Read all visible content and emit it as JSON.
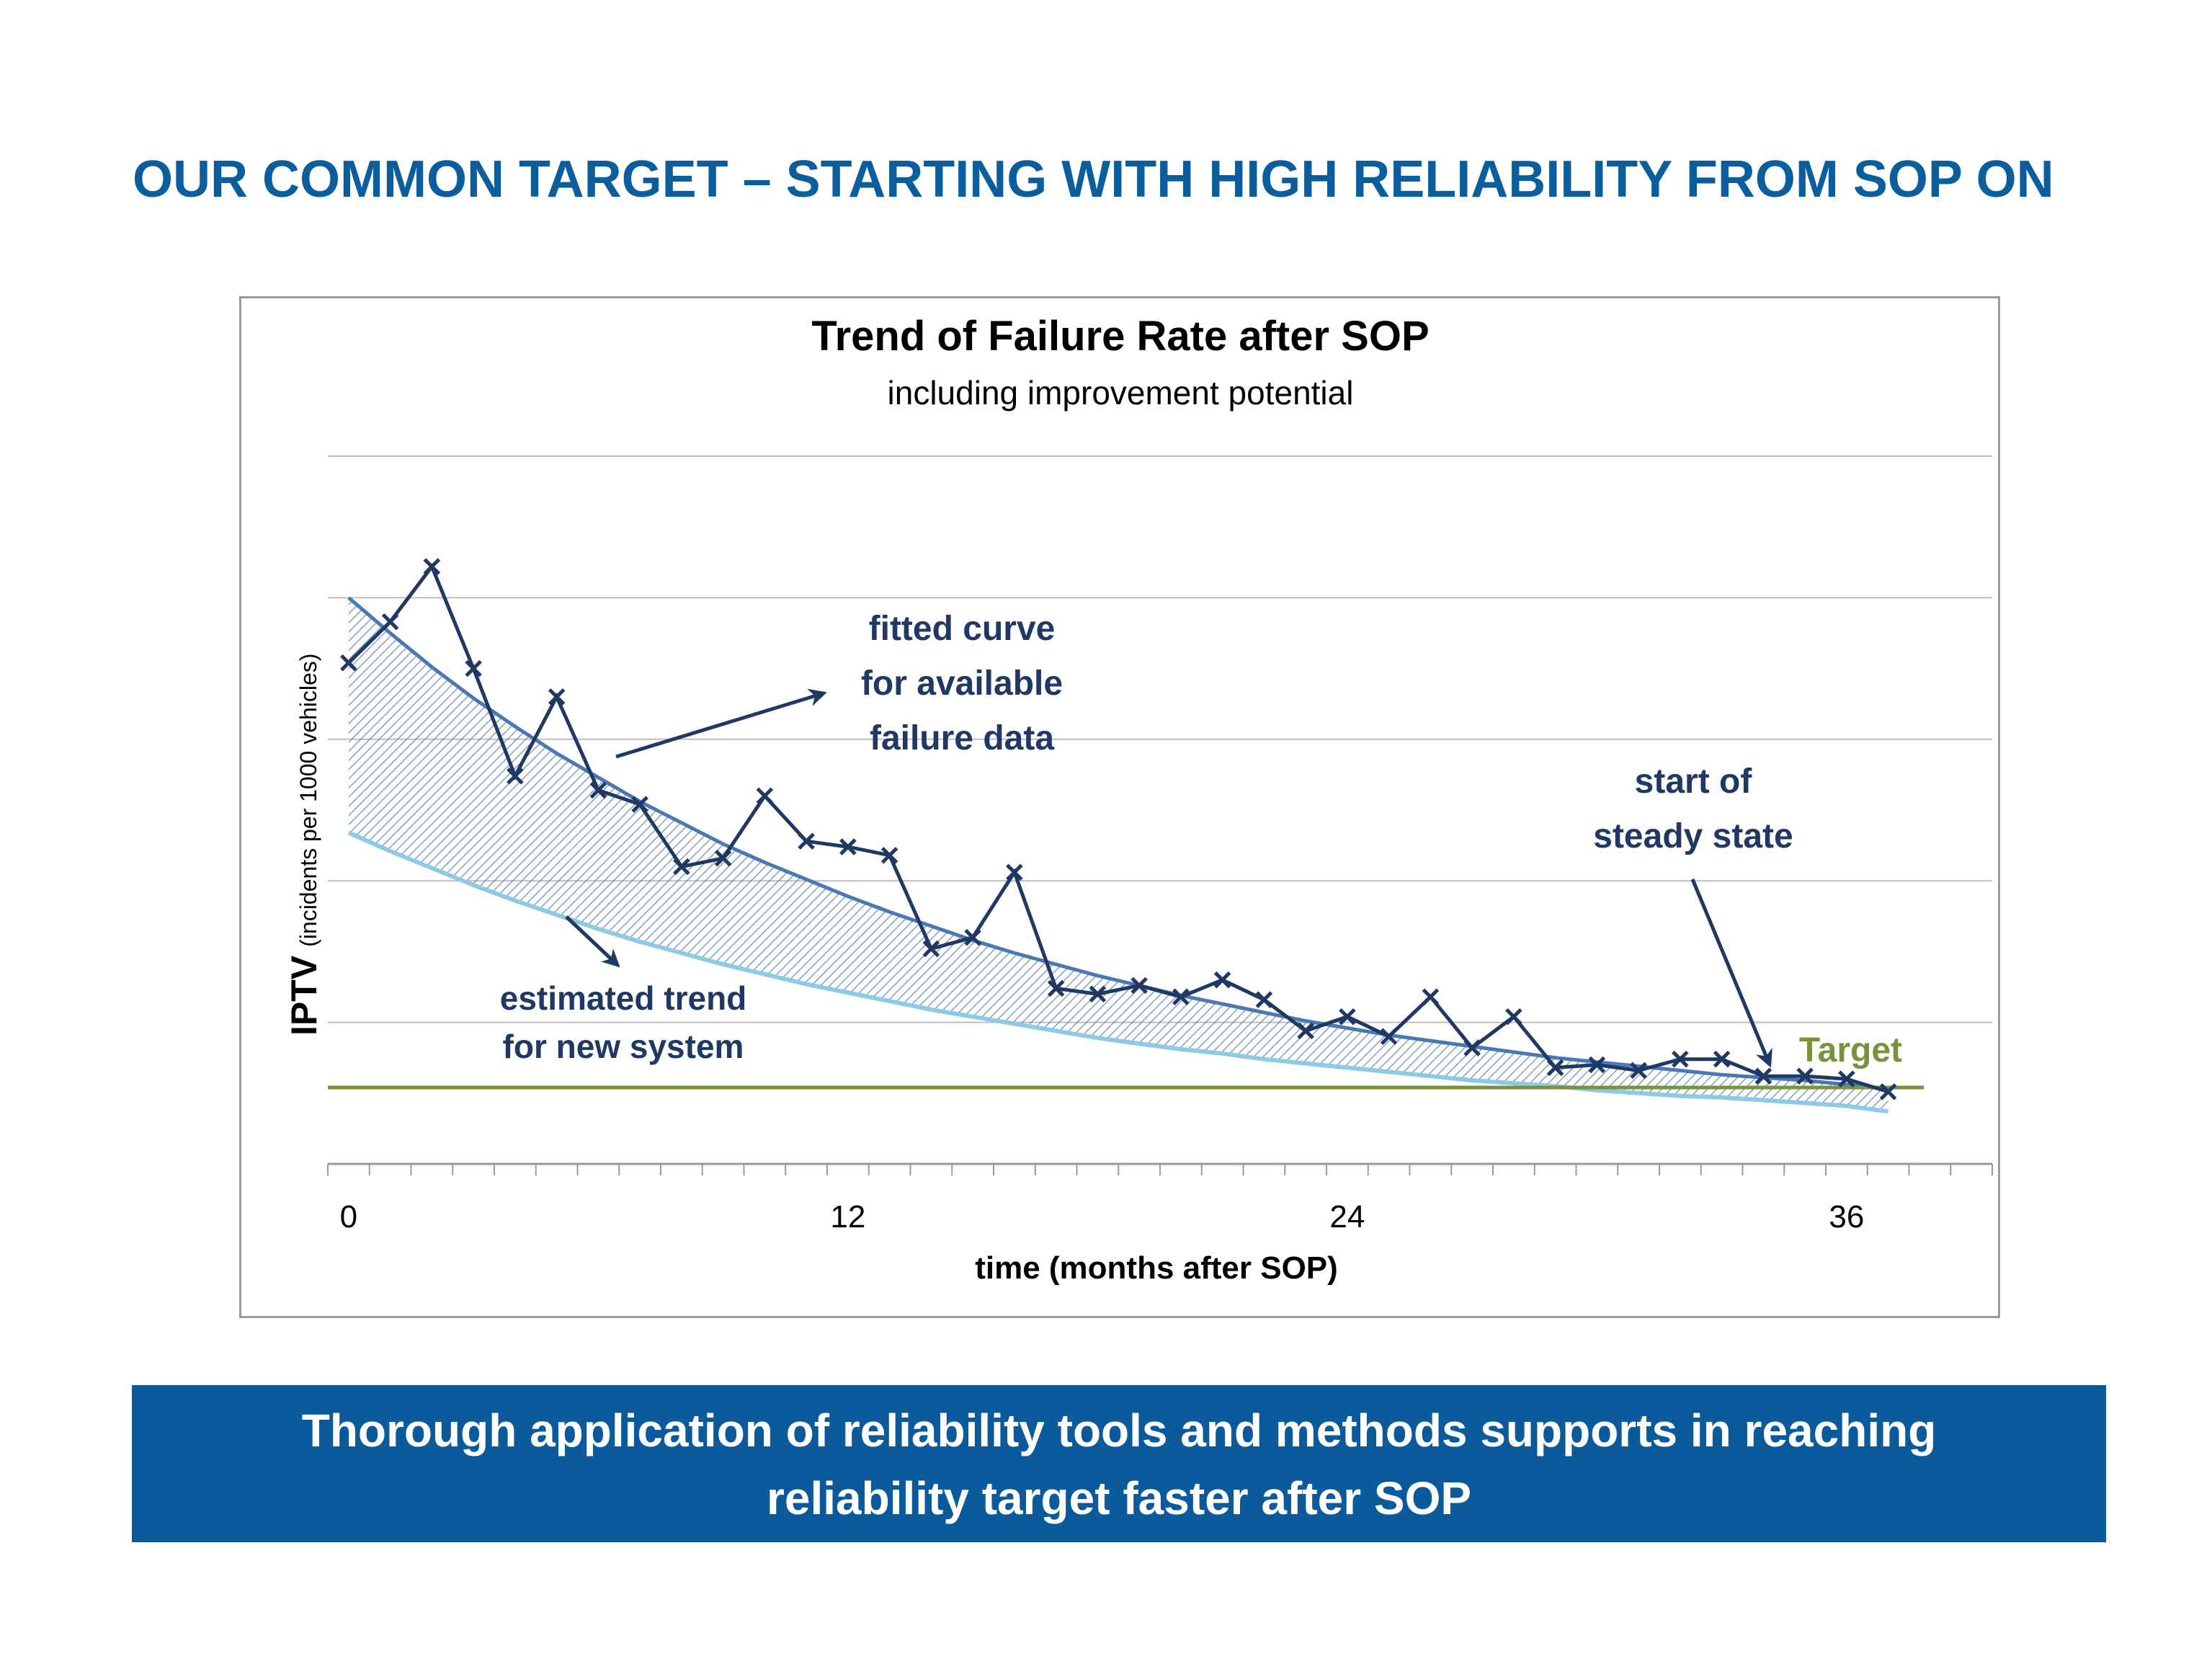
{
  "slide": {
    "title": "OUR COMMON TARGET – STARTING WITH HIGH RELIABILITY FROM SOP ON",
    "banner_line1": "Thorough application of reliability tools and methods supports in reaching",
    "banner_line2": "reliability target faster after SOP"
  },
  "colors": {
    "title": "#0b5e9e",
    "banner": "#0b5a9b",
    "data_line": "#1f3864",
    "fitted_curve": "#4a78b5",
    "estimated_curve": "#8ecae6",
    "hatch": "#5b7fa8",
    "target_line": "#77933c",
    "gridline": "#bfbfbf",
    "annotation_text": "#1f3864"
  },
  "chart_data": {
    "type": "line",
    "title": "Trend of Failure Rate after SOP",
    "subtitle": "including improvement potential",
    "xlabel": "time (months after SOP)",
    "ylabel_main": "IPTV",
    "ylabel_detail": "(incidents per 1000 vehicles)",
    "xlim": [
      -0.5,
      39.5
    ],
    "ylim": [
      0,
      5
    ],
    "x_ticks": [
      0,
      12,
      24,
      36
    ],
    "y_gridlines": [
      1,
      2,
      3,
      4,
      5
    ],
    "grid": true,
    "series": [
      {
        "kind": "observed",
        "x": [
          0,
          1,
          2,
          3,
          4,
          5,
          6,
          7,
          8,
          9,
          10,
          11,
          12,
          13,
          14,
          15,
          16,
          17,
          18,
          19,
          20,
          21,
          22,
          23,
          24,
          25,
          26,
          27,
          28,
          29,
          30,
          31,
          32,
          33,
          34,
          35,
          36,
          37
        ],
        "values": [
          3.54,
          3.83,
          4.22,
          3.5,
          2.74,
          3.3,
          2.64,
          2.54,
          2.1,
          2.16,
          2.6,
          2.28,
          2.24,
          2.18,
          1.52,
          1.6,
          2.06,
          1.24,
          1.2,
          1.26,
          1.18,
          1.3,
          1.16,
          0.94,
          1.04,
          0.9,
          1.18,
          0.82,
          1.04,
          0.68,
          0.7,
          0.66,
          0.74,
          0.74,
          0.62,
          0.62,
          0.6,
          0.51
        ]
      },
      {
        "kind": "fitted",
        "x": [
          0,
          1,
          2,
          3,
          4,
          5,
          6,
          7,
          8,
          9,
          10,
          11,
          12,
          13,
          14,
          15,
          16,
          17,
          18,
          19,
          20,
          21,
          22,
          23,
          24,
          25,
          26,
          27,
          28,
          29,
          30,
          31,
          32,
          33,
          34,
          35,
          36,
          37
        ],
        "values": [
          4.0,
          3.75,
          3.51,
          3.29,
          3.09,
          2.9,
          2.73,
          2.56,
          2.41,
          2.26,
          2.13,
          2.01,
          1.89,
          1.78,
          1.68,
          1.58,
          1.49,
          1.41,
          1.33,
          1.26,
          1.19,
          1.13,
          1.07,
          1.01,
          0.96,
          0.91,
          0.87,
          0.83,
          0.79,
          0.75,
          0.72,
          0.69,
          0.66,
          0.63,
          0.61,
          0.59,
          0.56,
          0.53
        ]
      },
      {
        "kind": "estimated",
        "x": [
          0,
          1,
          2,
          3,
          4,
          5,
          6,
          7,
          8,
          9,
          10,
          11,
          12,
          13,
          14,
          15,
          16,
          17,
          18,
          19,
          20,
          21,
          22,
          23,
          24,
          25,
          26,
          27,
          28,
          29,
          30,
          31,
          32,
          33,
          34,
          35,
          36,
          37
        ],
        "values": [
          2.34,
          2.21,
          2.09,
          1.97,
          1.86,
          1.76,
          1.66,
          1.57,
          1.49,
          1.41,
          1.34,
          1.27,
          1.21,
          1.15,
          1.09,
          1.04,
          0.99,
          0.94,
          0.89,
          0.85,
          0.81,
          0.78,
          0.74,
          0.71,
          0.68,
          0.65,
          0.62,
          0.59,
          0.57,
          0.55,
          0.52,
          0.5,
          0.48,
          0.47,
          0.45,
          0.43,
          0.41,
          0.37
        ]
      }
    ],
    "target": {
      "label": "Target",
      "value": 0.54
    },
    "annotations": {
      "fitted_line1": "fitted curve",
      "fitted_line2": "for available",
      "fitted_line3": "failure data",
      "estimated_line1": "estimated trend",
      "estimated_line2": "for new system",
      "steady_line1": "start of",
      "steady_line2": "steady state"
    }
  }
}
